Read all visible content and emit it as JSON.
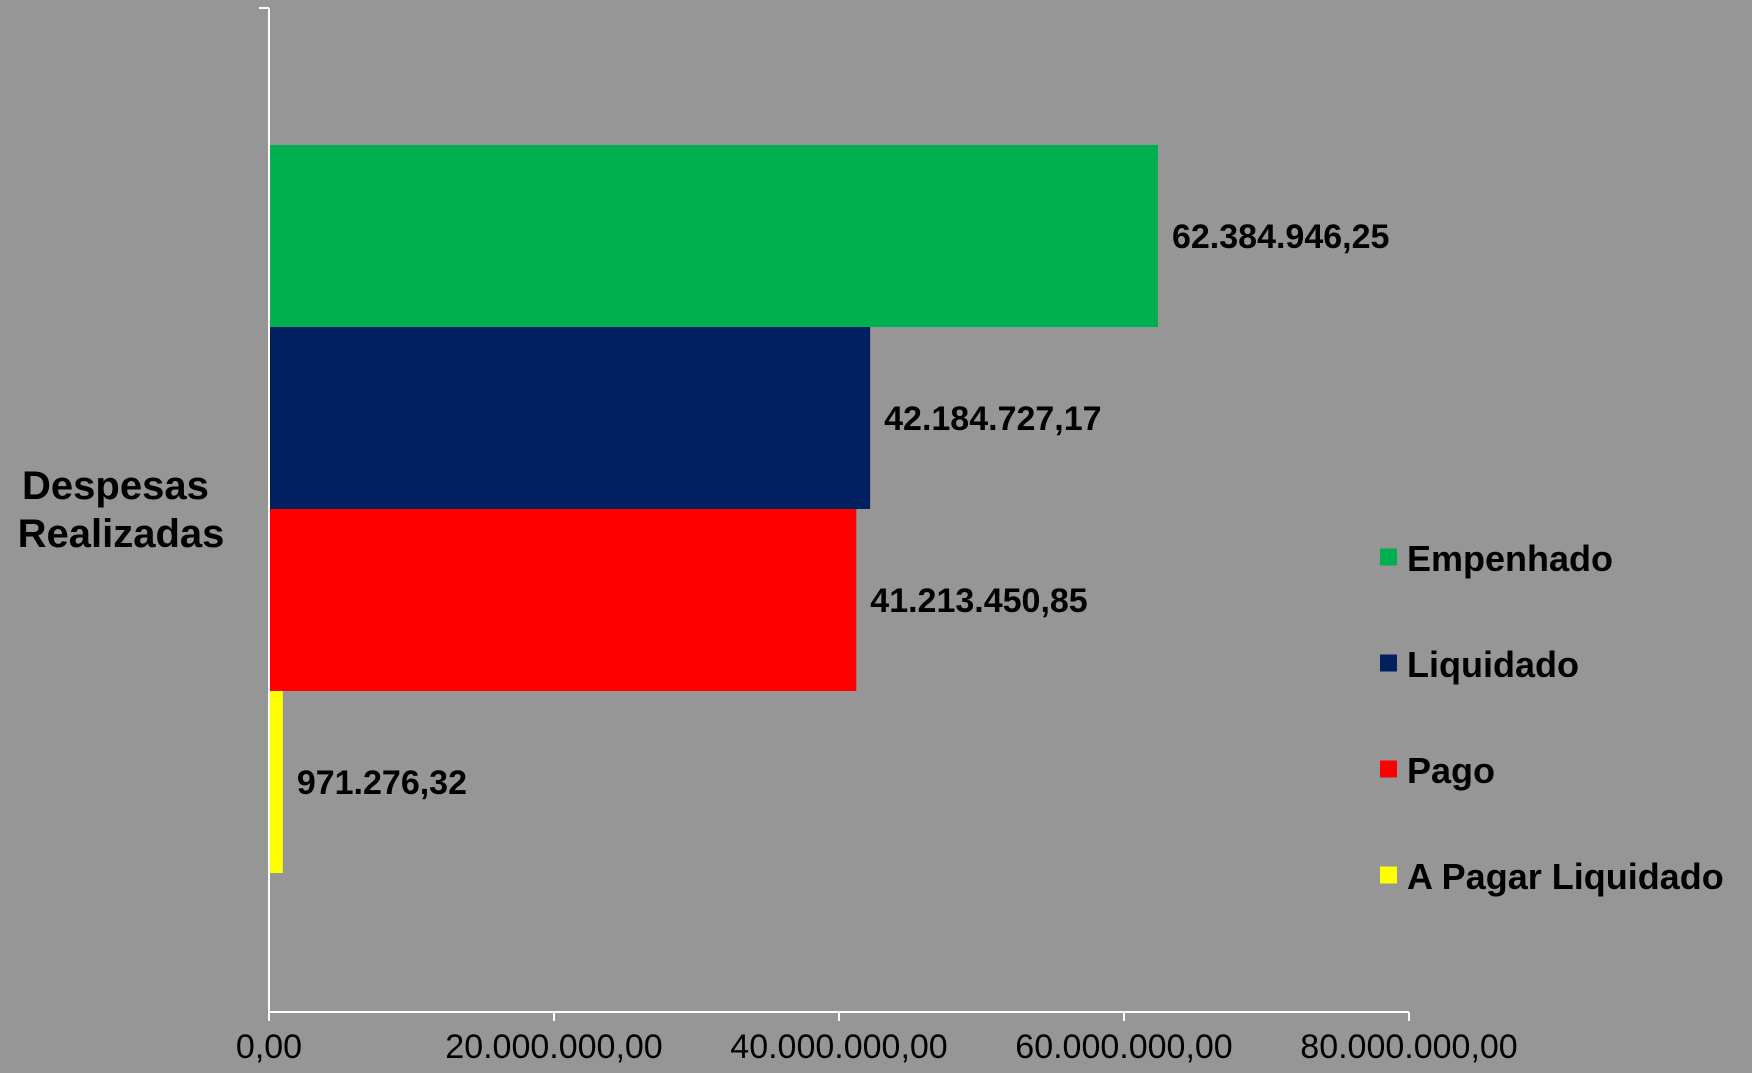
{
  "chart_data": {
    "type": "bar",
    "orientation": "horizontal",
    "categories": [
      "Despesas Realizadas"
    ],
    "category_label_lines": [
      "Despesas",
      "Realizadas"
    ],
    "series": [
      {
        "name": "Empenhado",
        "values": [
          62384946.25
        ],
        "label": "62.384.946,25",
        "color": "#00B050"
      },
      {
        "name": "Liquidado",
        "values": [
          42184727.17
        ],
        "label": "42.184.727,17",
        "color": "#002060"
      },
      {
        "name": "Pago",
        "values": [
          41213450.85
        ],
        "label": "41.213.450,85",
        "color": "#FF0000"
      },
      {
        "name": "A Pagar Liquidado",
        "values": [
          971276.32
        ],
        "label": "971.276,32",
        "color": "#FFFF00"
      }
    ],
    "x_ticks": [
      {
        "value": 0,
        "label": "0,00"
      },
      {
        "value": 20000000,
        "label": "20.000.000,00"
      },
      {
        "value": 40000000,
        "label": "40.000.000,00"
      },
      {
        "value": 60000000,
        "label": "60.000.000,00"
      },
      {
        "value": 80000000,
        "label": "80.000.000,00"
      }
    ],
    "xlim": [
      0,
      80000000
    ],
    "title": "",
    "xlabel": "",
    "ylabel": "",
    "grid": false,
    "legend_position": "right",
    "background_color": "#969696",
    "axis_color": "#FFFFFF"
  }
}
